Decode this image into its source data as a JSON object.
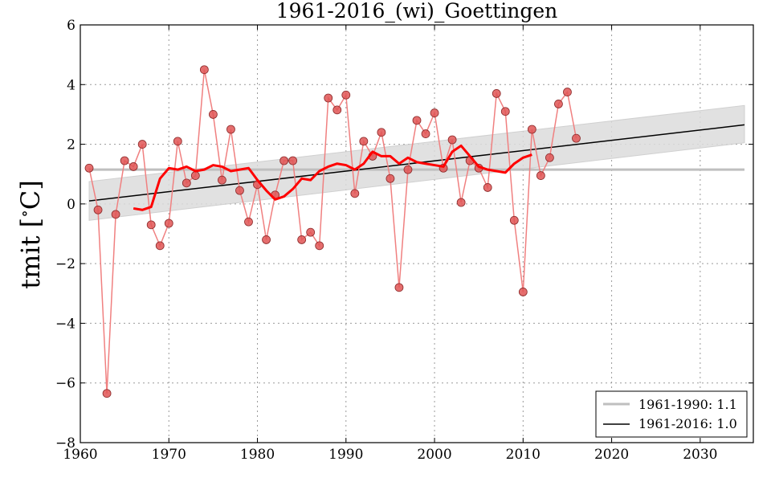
{
  "chart_data": {
    "type": "line",
    "title": "1961-2016_(wi)_Goettingen",
    "xlabel": "",
    "ylabel": "tmit [ ° C]",
    "ylabel_parts": [
      "tmit",
      "[",
      "∘",
      "C]"
    ],
    "xlim": [
      1960,
      2036
    ],
    "ylim": [
      -8,
      6
    ],
    "xticks": [
      1960,
      1970,
      1980,
      1990,
      2000,
      2010,
      2020,
      2030
    ],
    "xtick_labels": [
      "1960",
      "1970",
      "1980",
      "1990",
      "2000",
      "2010",
      "2020",
      "2030"
    ],
    "yticks": [
      6,
      4,
      2,
      0,
      -2,
      -4,
      -6,
      -8
    ],
    "ytick_labels": [
      "6",
      "4",
      "2",
      "0",
      "−2",
      "−4",
      "−6",
      "−8"
    ],
    "grid": true,
    "colors": {
      "observed": "#f08080",
      "marker_fill": "#e05555",
      "marker_edge": "#8b2a2a",
      "smoothed": "#ff0000",
      "reference": "#bfbfbf",
      "trend": "#000000",
      "band": "#dcdcdc"
    },
    "series": [
      {
        "name": "observed",
        "x": [
          1961,
          1962,
          1963,
          1964,
          1965,
          1966,
          1967,
          1968,
          1969,
          1970,
          1971,
          1972,
          1973,
          1974,
          1975,
          1976,
          1977,
          1978,
          1979,
          1980,
          1981,
          1982,
          1983,
          1984,
          1985,
          1986,
          1987,
          1988,
          1989,
          1990,
          1991,
          1992,
          1993,
          1994,
          1995,
          1996,
          1997,
          1998,
          1999,
          2000,
          2001,
          2002,
          2003,
          2004,
          2005,
          2006,
          2007,
          2008,
          2009,
          2010,
          2011,
          2012,
          2013,
          2014,
          2015,
          2016
        ],
        "values": [
          1.2,
          -0.2,
          -6.35,
          -0.35,
          1.45,
          1.25,
          2.0,
          -0.7,
          -1.4,
          -0.65,
          2.1,
          0.7,
          0.95,
          4.5,
          3.0,
          0.8,
          2.5,
          0.45,
          -0.6,
          0.65,
          -1.2,
          0.3,
          1.45,
          1.45,
          -1.2,
          -0.95,
          -1.4,
          3.55,
          3.15,
          3.65,
          0.35,
          2.1,
          1.6,
          2.4,
          0.85,
          -2.8,
          1.15,
          2.8,
          2.35,
          3.05,
          1.2,
          2.15,
          0.05,
          1.45,
          1.2,
          0.55,
          3.7,
          3.1,
          -0.55,
          -2.95,
          2.5,
          0.95,
          1.55,
          3.35,
          3.75,
          2.2
        ]
      },
      {
        "name": "smoothed",
        "x": [
          1966,
          1967,
          1968,
          1969,
          1970,
          1971,
          1972,
          1973,
          1974,
          1975,
          1976,
          1977,
          1978,
          1979,
          1980,
          1981,
          1982,
          1983,
          1984,
          1985,
          1986,
          1987,
          1988,
          1989,
          1990,
          1991,
          1992,
          1993,
          1994,
          1995,
          1996,
          1997,
          1998,
          1999,
          2000,
          2001,
          2002,
          2003,
          2004,
          2005,
          2006,
          2007,
          2008,
          2009,
          2010,
          2011
        ],
        "values": [
          -0.15,
          -0.2,
          -0.1,
          0.85,
          1.2,
          1.15,
          1.25,
          1.1,
          1.15,
          1.3,
          1.25,
          1.1,
          1.15,
          1.2,
          0.8,
          0.45,
          0.15,
          0.25,
          0.5,
          0.85,
          0.8,
          1.1,
          1.25,
          1.35,
          1.3,
          1.15,
          1.35,
          1.75,
          1.6,
          1.6,
          1.35,
          1.55,
          1.4,
          1.35,
          1.3,
          1.25,
          1.75,
          1.95,
          1.6,
          1.25,
          1.15,
          1.1,
          1.05,
          1.35,
          1.55,
          1.65
        ]
      }
    ],
    "reference_line": {
      "x_start": 1961,
      "x_end": 2035,
      "value": 1.15
    },
    "trend_line": {
      "x_start": 1961,
      "x_end": 2035,
      "y_start": 0.1,
      "y_end": 2.65,
      "band_lower_start": -0.55,
      "band_upper_start": 0.75,
      "band_lower_end": 2.05,
      "band_upper_end": 3.3
    },
    "legend": {
      "position": "bottom-right",
      "entries": [
        {
          "label": "1961-1990: 1.1",
          "color": "#bfbfbf"
        },
        {
          "label": "1961-2016: 1.0",
          "color": "#000000"
        }
      ]
    }
  }
}
